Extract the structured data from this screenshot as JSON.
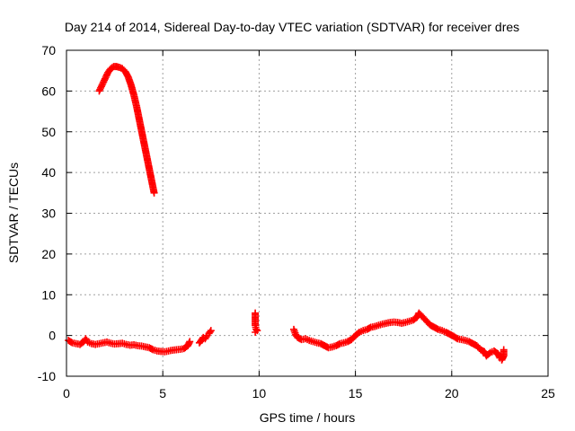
{
  "chart_data": {
    "type": "scatter",
    "title": "Day 214 of 2014, Sidereal Day-to-day VTEC variation (SDTVAR) for receiver dres",
    "xlabel": "GPS time / hours",
    "ylabel": "SDTVAR / TECUs",
    "xlim": [
      0,
      25
    ],
    "ylim": [
      -10,
      70
    ],
    "xticks": [
      0,
      5,
      10,
      15,
      20,
      25
    ],
    "yticks": [
      -10,
      0,
      10,
      20,
      30,
      40,
      50,
      60,
      70
    ],
    "grid": true,
    "marker": "+",
    "color": "#ff0000",
    "series": [
      {
        "name": "SDTVAR",
        "segments": [
          {
            "points": [
              [
                1.7,
                60
              ],
              [
                1.85,
                61.5
              ],
              [
                2.0,
                63
              ],
              [
                2.15,
                64.5
              ],
              [
                2.3,
                65.5
              ],
              [
                2.45,
                66
              ],
              [
                2.6,
                66
              ],
              [
                2.75,
                65.8
              ],
              [
                2.9,
                65.5
              ],
              [
                3.05,
                64.8
              ],
              [
                3.2,
                63.5
              ],
              [
                3.35,
                61.5
              ],
              [
                3.5,
                59
              ],
              [
                3.65,
                56
              ],
              [
                3.8,
                52.5
              ],
              [
                3.95,
                49
              ],
              [
                4.1,
                45.5
              ],
              [
                4.25,
                42
              ],
              [
                4.4,
                38.5
              ],
              [
                4.55,
                35
              ]
            ]
          },
          {
            "points": [
              [
                0.1,
                -1.2
              ],
              [
                0.3,
                -1.8
              ],
              [
                0.5,
                -2.0
              ],
              [
                0.7,
                -2.2
              ],
              [
                0.9,
                -1.5
              ],
              [
                1.0,
                -0.8
              ],
              [
                1.1,
                -1.6
              ],
              [
                1.3,
                -2.0
              ],
              [
                1.5,
                -2.2
              ],
              [
                1.7,
                -2.0
              ],
              [
                1.9,
                -1.8
              ],
              [
                2.1,
                -1.6
              ],
              [
                2.3,
                -1.9
              ],
              [
                2.5,
                -2.1
              ],
              [
                2.7,
                -2.0
              ],
              [
                2.9,
                -1.9
              ],
              [
                3.1,
                -2.2
              ],
              [
                3.3,
                -2.4
              ],
              [
                3.5,
                -2.3
              ],
              [
                3.7,
                -2.5
              ],
              [
                3.9,
                -2.6
              ],
              [
                4.1,
                -2.8
              ],
              [
                4.3,
                -3.0
              ],
              [
                4.5,
                -3.5
              ],
              [
                4.7,
                -3.8
              ],
              [
                4.9,
                -3.9
              ],
              [
                5.1,
                -4.0
              ],
              [
                5.3,
                -3.8
              ],
              [
                5.5,
                -3.6
              ],
              [
                5.7,
                -3.5
              ],
              [
                5.9,
                -3.4
              ],
              [
                6.1,
                -3.2
              ],
              [
                6.3,
                -2.5
              ],
              [
                6.4,
                -1.5
              ]
            ]
          },
          {
            "points": [
              [
                6.9,
                -1.8
              ],
              [
                7.0,
                -1.2
              ],
              [
                7.1,
                -0.5
              ],
              [
                7.2,
                -0.8
              ],
              [
                7.3,
                0.0
              ],
              [
                7.4,
                0.5
              ],
              [
                7.5,
                1.2
              ]
            ]
          },
          {
            "points": [
              [
                9.8,
                5.5
              ],
              [
                9.8,
                2.5
              ],
              [
                9.85,
                1.5
              ],
              [
                9.9,
                1.2
              ],
              [
                9.8,
                0.8
              ]
            ]
          },
          {
            "points": [
              [
                11.8,
                1.5
              ],
              [
                11.9,
                0.2
              ],
              [
                12.0,
                -0.5
              ],
              [
                12.2,
                -1.0
              ],
              [
                12.4,
                -0.8
              ],
              [
                12.6,
                -1.2
              ],
              [
                12.8,
                -1.5
              ],
              [
                13.0,
                -1.8
              ],
              [
                13.2,
                -2.0
              ],
              [
                13.4,
                -2.5
              ],
              [
                13.6,
                -3.0
              ],
              [
                13.8,
                -2.8
              ],
              [
                14.0,
                -2.5
              ],
              [
                14.2,
                -2.0
              ],
              [
                14.4,
                -1.8
              ],
              [
                14.6,
                -1.5
              ],
              [
                14.8,
                -1.0
              ],
              [
                15.0,
                0.0
              ],
              [
                15.2,
                0.8
              ],
              [
                15.4,
                1.2
              ],
              [
                15.6,
                1.5
              ],
              [
                15.8,
                2.0
              ],
              [
                16.0,
                2.2
              ],
              [
                16.2,
                2.5
              ],
              [
                16.4,
                2.8
              ],
              [
                16.6,
                3.0
              ],
              [
                16.8,
                3.2
              ],
              [
                17.0,
                3.3
              ],
              [
                17.2,
                3.2
              ],
              [
                17.4,
                3.0
              ],
              [
                17.6,
                3.2
              ],
              [
                17.8,
                3.5
              ],
              [
                18.0,
                3.8
              ],
              [
                18.2,
                4.5
              ],
              [
                18.3,
                5.5
              ],
              [
                18.5,
                4.5
              ],
              [
                18.7,
                3.5
              ],
              [
                18.9,
                2.5
              ],
              [
                19.1,
                2.0
              ],
              [
                19.3,
                1.5
              ],
              [
                19.5,
                1.2
              ],
              [
                19.7,
                0.8
              ],
              [
                19.9,
                0.3
              ],
              [
                20.1,
                -0.2
              ],
              [
                20.3,
                -0.8
              ],
              [
                20.5,
                -1.0
              ],
              [
                20.7,
                -1.2
              ],
              [
                20.9,
                -1.5
              ],
              [
                21.1,
                -2.0
              ],
              [
                21.3,
                -2.5
              ],
              [
                21.5,
                -3.5
              ],
              [
                21.7,
                -4.0
              ],
              [
                21.8,
                -5.0
              ],
              [
                22.0,
                -4.2
              ],
              [
                22.2,
                -3.8
              ],
              [
                22.4,
                -4.5
              ],
              [
                22.5,
                -5.5
              ],
              [
                22.6,
                -6.0
              ],
              [
                22.7,
                -5.0
              ],
              [
                22.7,
                -3.5
              ]
            ]
          }
        ]
      }
    ]
  }
}
